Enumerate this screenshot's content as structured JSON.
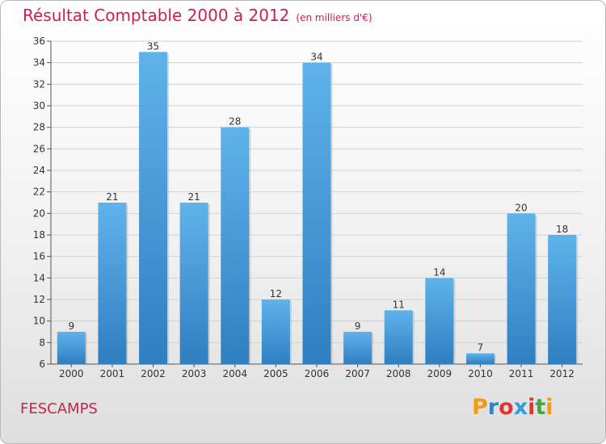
{
  "header": {
    "title": "Résultat Comptable 2000 à 2012",
    "subtitle": "(en milliers d'€)"
  },
  "footer": {
    "city": "FESCAMPS",
    "logo_text": "Proxiti",
    "logo_colors": [
      "#f39c12",
      "#3a7fc4",
      "#e2342e",
      "#2d9de0",
      "#e2342e",
      "#3caa3c",
      "#f39c12"
    ]
  },
  "colors": {
    "bar_top": "#5fb3ea",
    "bar_bottom": "#2f7fc1",
    "grid": "#d2d2d2",
    "axis_text": "#333333",
    "title": "#cc1f4f"
  },
  "chart_data": {
    "type": "bar",
    "title": "Résultat Comptable 2000 à 2012",
    "xlabel": "",
    "ylabel": "",
    "categories": [
      "2000",
      "2001",
      "2002",
      "2003",
      "2004",
      "2005",
      "2006",
      "2007",
      "2008",
      "2009",
      "2010",
      "2011",
      "2012"
    ],
    "values": [
      9,
      21,
      35,
      21,
      28,
      12,
      34,
      9,
      11,
      14,
      7,
      20,
      18
    ],
    "ylim": [
      6,
      36
    ],
    "yticks": [
      6,
      8,
      10,
      12,
      14,
      16,
      18,
      20,
      22,
      24,
      26,
      28,
      30,
      32,
      34,
      36
    ],
    "grid": true,
    "legend": "none"
  }
}
